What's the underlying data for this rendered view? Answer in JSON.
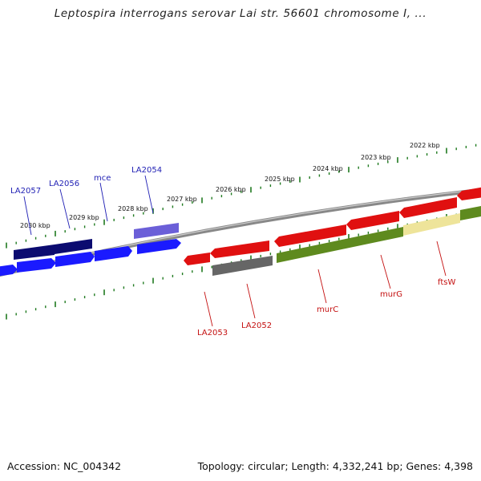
{
  "title": "Leptospira interrogans serovar Lai str. 56601 chromosome I, ...",
  "footer": {
    "accession_label": "Accession:",
    "accession": "NC_004342",
    "topology_label": "Topology:",
    "topology": "circular",
    "length_label": "Length:",
    "length": "4,332,241 bp",
    "genes_label": "Genes:",
    "genes": "4,398"
  },
  "scale": {
    "tick_labels": [
      "2030 kbp",
      "2029 kbp",
      "2028 kbp",
      "2027 kbp",
      "2026 kbp",
      "2025 kbp",
      "2024 kbp",
      "2023 kbp",
      "2022 kbp"
    ]
  },
  "labels": {
    "forward": [
      "LA2057",
      "LA2056",
      "mce",
      "LA2054"
    ],
    "reverse": [
      "LA2053",
      "LA2052",
      "murC",
      "murG",
      "ftsW"
    ]
  },
  "colors": {
    "forward_gene": "#1a1aff",
    "forward_dark": "#0b0b70",
    "forward_light": "#6b5fd8",
    "reverse_gene": "#e01010",
    "reverse_grey": "#666666",
    "olive": "#5e8a1e",
    "pale_yellow": "#eee49a",
    "backbone": "#7a7a7a",
    "tick_green": "#1f7a1f"
  }
}
